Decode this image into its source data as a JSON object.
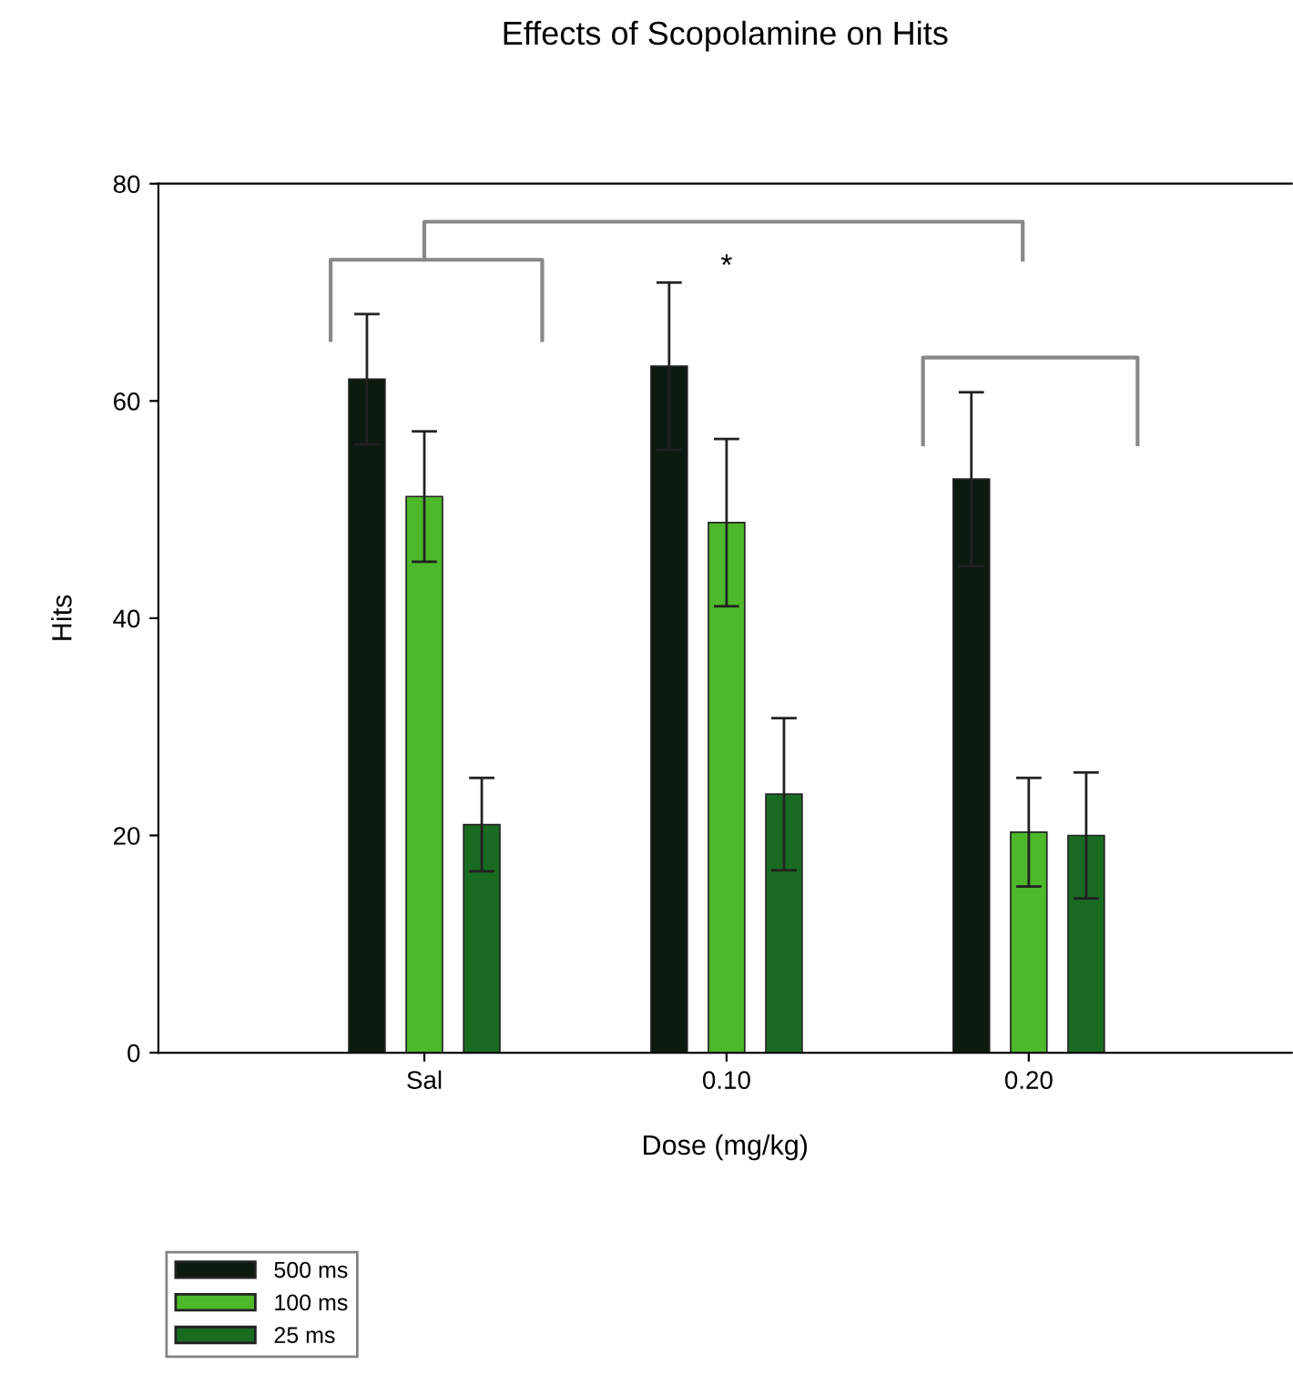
{
  "chart_data": {
    "type": "bar",
    "title": "Effects of Scopolamine on Hits",
    "xlabel": "Dose (mg/kg)",
    "ylabel": "Hits",
    "categories": [
      "Sal",
      "0.10",
      "0.20"
    ],
    "series": [
      {
        "name": "500 ms",
        "color": "#0d1a10",
        "values": [
          62,
          63.2,
          52.8
        ],
        "errors": [
          6,
          7.7,
          8
        ]
      },
      {
        "name": "100 ms",
        "color": "#4cb82a",
        "values": [
          51.2,
          48.8,
          20.3
        ],
        "errors": [
          6,
          7.7,
          5
        ]
      },
      {
        "name": "25 ms",
        "color": "#1a6b22",
        "values": [
          21,
          23.8,
          20
        ],
        "errors": [
          4.3,
          7,
          5.8
        ]
      }
    ],
    "ylim": [
      0,
      80
    ],
    "yticks": [
      0,
      20,
      40,
      60,
      80
    ],
    "grid": false,
    "legend": "bottom left",
    "annotations": [
      "*"
    ]
  }
}
